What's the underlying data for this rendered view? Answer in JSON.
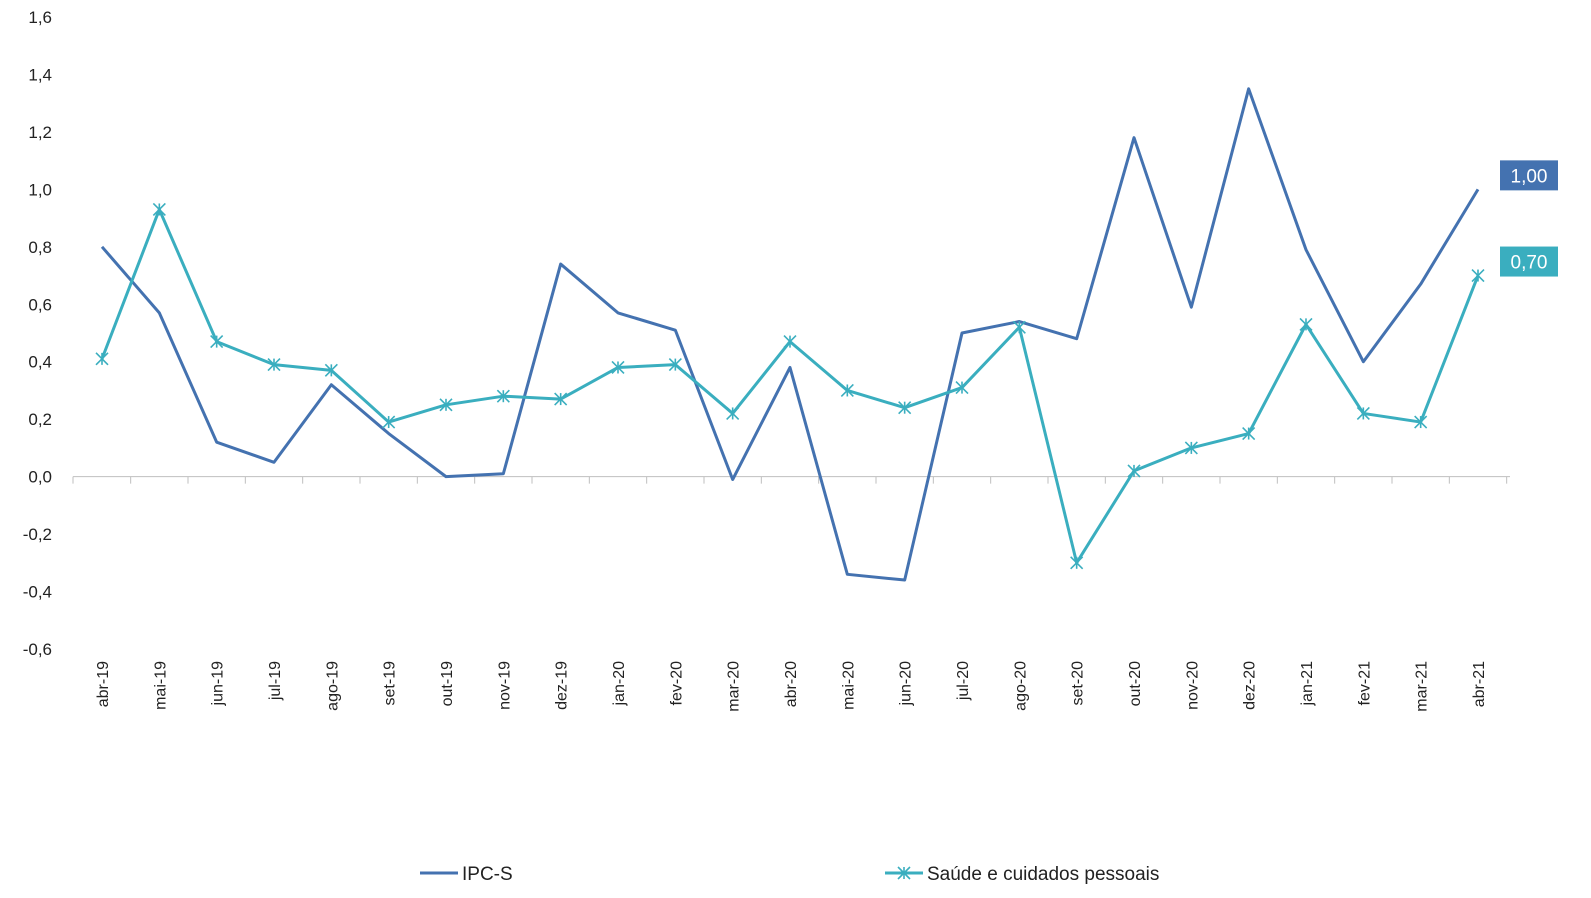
{
  "chart_data": {
    "type": "line",
    "categories": [
      "abr-19",
      "mai-19",
      "jun-19",
      "jul-19",
      "ago-19",
      "set-19",
      "out-19",
      "nov-19",
      "dez-19",
      "jan-20",
      "fev-20",
      "mar-20",
      "abr-20",
      "mai-20",
      "jun-20",
      "jul-20",
      "ago-20",
      "set-20",
      "out-20",
      "nov-20",
      "dez-20",
      "jan-21",
      "fev-21",
      "mar-21",
      "abr-21"
    ],
    "ylim": [
      -0.6,
      1.6
    ],
    "yticks": [
      "-0,6",
      "-0,4",
      "-0,2",
      "0,0",
      "0,2",
      "0,4",
      "0,6",
      "0,8",
      "1,0",
      "1,2",
      "1,4",
      "1,6"
    ],
    "ytick_values": [
      -0.6,
      -0.4,
      -0.2,
      0.0,
      0.2,
      0.4,
      0.6,
      0.8,
      1.0,
      1.2,
      1.4,
      1.6
    ],
    "grid": false,
    "legend_position": "bottom",
    "series": [
      {
        "name": "IPC-S",
        "color": "#4472b0",
        "marker": "none",
        "values": [
          0.8,
          0.57,
          0.12,
          0.05,
          0.32,
          0.15,
          0.0,
          0.01,
          0.74,
          0.57,
          0.51,
          -0.01,
          0.38,
          -0.34,
          -0.36,
          0.5,
          0.54,
          0.48,
          1.18,
          0.59,
          1.35,
          0.79,
          0.4,
          0.67,
          1.0
        ],
        "end_label": "1,00"
      },
      {
        "name": "Saúde e cuidados pessoais",
        "color": "#3aaebf",
        "marker": "asterisk",
        "values": [
          0.41,
          0.93,
          0.47,
          0.39,
          0.37,
          0.19,
          0.25,
          0.28,
          0.27,
          0.38,
          0.39,
          0.22,
          0.47,
          0.3,
          0.24,
          0.31,
          0.52,
          -0.3,
          0.02,
          0.1,
          0.15,
          0.53,
          0.22,
          0.19,
          0.7
        ],
        "end_label": "0,70"
      }
    ]
  }
}
